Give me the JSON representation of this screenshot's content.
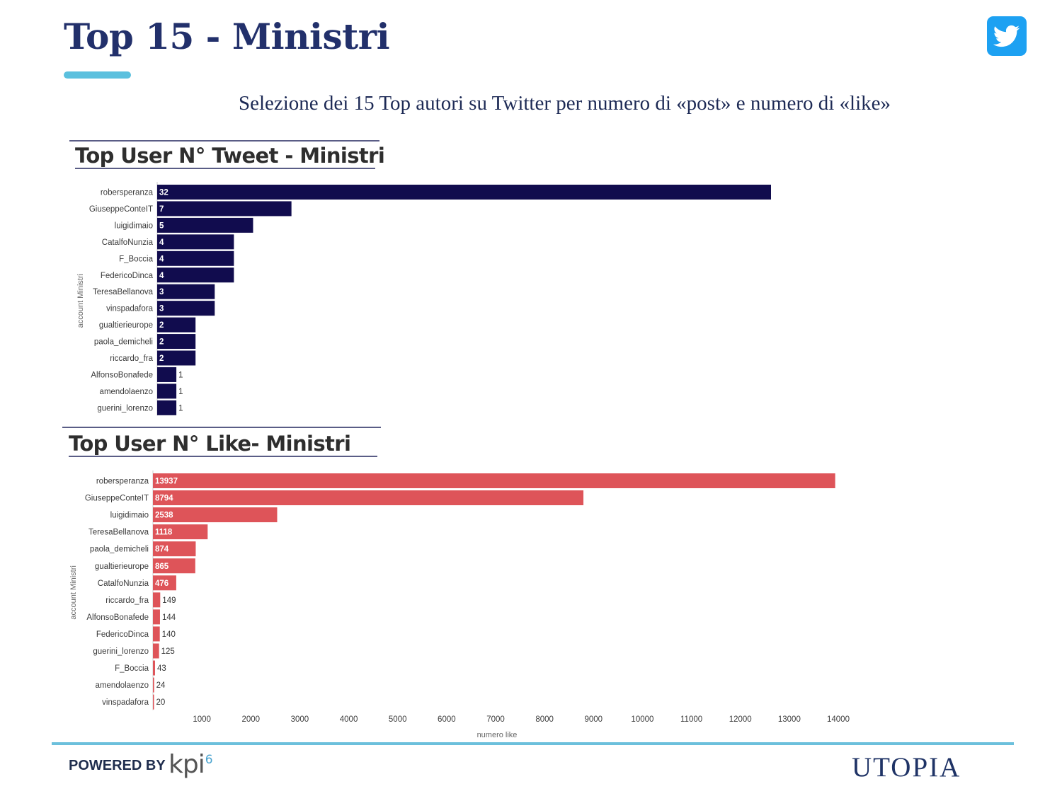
{
  "header": {
    "title": "Top 15 - Ministri",
    "subtitle": "Selezione dei 15 Top autori su Twitter per numero di «post» e numero di «like»",
    "icon": "twitter-icon"
  },
  "footer": {
    "powered_by": "POWERED BY",
    "kpi_logo": "kpi",
    "kpi_logo_sup": "6",
    "brand_logo": "UTOPIA"
  },
  "colors": {
    "title": "#22306b",
    "accent": "#5bc0de",
    "tweet_bar": "#110c4e",
    "like_bar": "#de5459",
    "twitter": "#1da1f2"
  },
  "chart_data": [
    {
      "type": "bar",
      "orientation": "horizontal",
      "title": "Top User N° Tweet - Ministri",
      "ylabel": "account Ministri",
      "xlabel": "",
      "categories": [
        "robersperanza",
        "GiuseppeConteIT",
        "luigidimaio",
        "CatalfoNunzia",
        "F_Boccia",
        "FedericoDinca",
        "TeresaBellanova",
        "vinspadafora",
        "gualtierieurope",
        "paola_demicheli",
        "riccardo_fra",
        "AlfonsoBonafede",
        "amendolaenzo",
        "guerini_lorenzo"
      ],
      "values": [
        32,
        7,
        5,
        4,
        4,
        4,
        3,
        3,
        2,
        2,
        2,
        1,
        1,
        1
      ],
      "data_labels": [
        "32",
        "7",
        "5",
        "4",
        "4",
        "4",
        "3",
        "3",
        "2",
        "2",
        "2",
        "1",
        "1",
        "1"
      ],
      "xlim": [
        0,
        32
      ],
      "grid": false,
      "legend": "none",
      "axis_ticks_visible": false
    },
    {
      "type": "bar",
      "orientation": "horizontal",
      "title": "Top User N° Like- Ministri",
      "ylabel": "account Ministri",
      "xlabel": "numero like",
      "categories": [
        "robersperanza",
        "GiuseppeConteIT",
        "luigidimaio",
        "TeresaBellanova",
        "paola_demicheli",
        "gualtierieurope",
        "CatalfoNunzia",
        "riccardo_fra",
        "AlfonsoBonafede",
        "FedericoDinca",
        "guerini_lorenzo",
        "F_Boccia",
        "amendolaenzo",
        "vinspadafora"
      ],
      "values": [
        13937,
        8794,
        2538,
        1118,
        874,
        865,
        476,
        149,
        144,
        140,
        125,
        43,
        24,
        20
      ],
      "data_labels": [
        "13937",
        "8794",
        "2538",
        "1118",
        "874",
        "865",
        "476",
        "149",
        "144",
        "140",
        "125",
        "43",
        "24",
        "20"
      ],
      "xticks": [
        1000,
        2000,
        3000,
        4000,
        5000,
        6000,
        7000,
        8000,
        9000,
        10000,
        11000,
        12000,
        13000,
        14000
      ],
      "xtick_labels": [
        "1000",
        "2000",
        "3000",
        "4000",
        "5000",
        "6000",
        "7000",
        "8000",
        "9000",
        "10000",
        "11000",
        "12000",
        "13000",
        "14000"
      ],
      "xlim": [
        0,
        14000
      ],
      "grid": false,
      "legend": "none"
    }
  ]
}
